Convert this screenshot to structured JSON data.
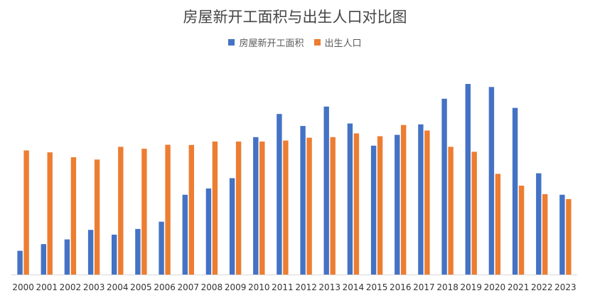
{
  "chart_data": {
    "type": "bar",
    "title": "房屋新开工面积与出生人口对比图",
    "categories": [
      "2000",
      "2001",
      "2002",
      "2003",
      "2004",
      "2005",
      "2006",
      "2007",
      "2008",
      "2009",
      "2010",
      "2011",
      "2012",
      "2013",
      "2014",
      "2015",
      "2016",
      "2017",
      "2018",
      "2019",
      "2020",
      "2021",
      "2022",
      "2023"
    ],
    "series": [
      {
        "name": "房屋新开工面积",
        "color": "#4472C4",
        "values": [
          12.5,
          16.0,
          18.5,
          23.5,
          21.0,
          24.0,
          27.8,
          42.0,
          45.3,
          50.7,
          72.3,
          84.5,
          78.2,
          88.4,
          79.5,
          67.8,
          73.5,
          79.0,
          92.5,
          100.3,
          98.7,
          87.7,
          53.3,
          42.0
        ],
        "value_labels": []
      },
      {
        "name": "出生人口",
        "color": "#ED7D31",
        "values": [
          65.3,
          64.3,
          61.7,
          60.5,
          67.2,
          66.2,
          68.3,
          68.2,
          70.0,
          70.0,
          70.0,
          70.5,
          72.0,
          72.3,
          74.3,
          72.8,
          78.7,
          75.8,
          67.2,
          64.6,
          53.0,
          46.8,
          42.3,
          39.7
        ],
        "value_labels": []
      }
    ],
    "ylim": [
      0,
      100.3
    ],
    "grid": false,
    "legend_position": "top-center"
  }
}
